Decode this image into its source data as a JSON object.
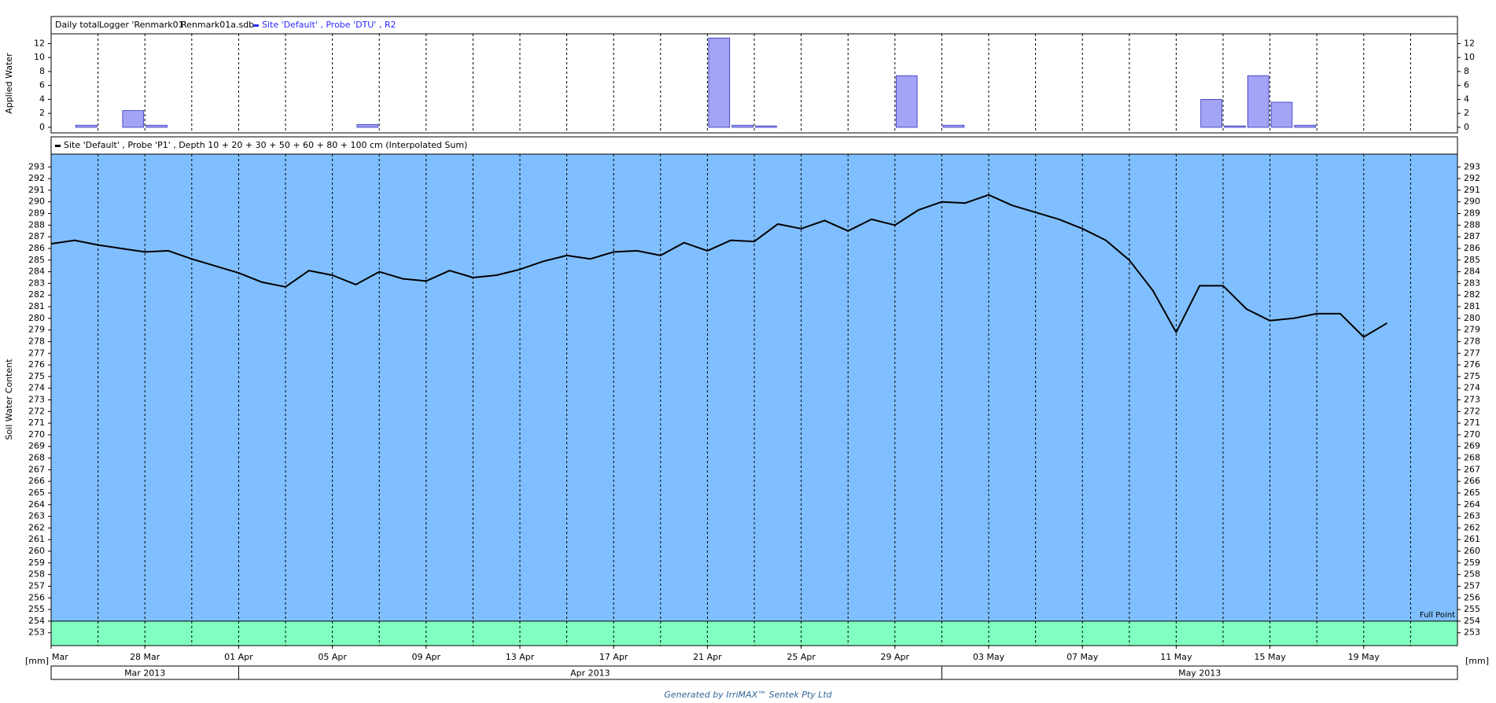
{
  "chart_data": [
    {
      "type": "bar",
      "header": [
        "Daily total",
        "Logger 'Renmark01'",
        "Renmark01a.sdb"
      ],
      "ylabel": "Applied Water",
      "x": [
        "2013-03-24",
        "2013-03-25",
        "2013-03-26",
        "2013-03-27",
        "2013-03-28",
        "2013-03-29",
        "2013-03-30",
        "2013-03-31",
        "2013-04-01",
        "2013-04-02",
        "2013-04-03",
        "2013-04-04",
        "2013-04-05",
        "2013-04-06",
        "2013-04-07",
        "2013-04-08",
        "2013-04-09",
        "2013-04-10",
        "2013-04-11",
        "2013-04-12",
        "2013-04-13",
        "2013-04-14",
        "2013-04-15",
        "2013-04-16",
        "2013-04-17",
        "2013-04-18",
        "2013-04-19",
        "2013-04-20",
        "2013-04-21",
        "2013-04-22",
        "2013-04-23",
        "2013-04-24",
        "2013-04-25",
        "2013-04-26",
        "2013-04-27",
        "2013-04-28",
        "2013-04-29",
        "2013-04-30",
        "2013-05-01",
        "2013-05-02",
        "2013-05-03",
        "2013-05-04",
        "2013-05-05",
        "2013-05-06",
        "2013-05-07",
        "2013-05-08",
        "2013-05-09",
        "2013-05-10",
        "2013-05-11",
        "2013-05-12",
        "2013-05-13",
        "2013-05-14",
        "2013-05-15",
        "2013-05-16",
        "2013-05-17",
        "2013-05-18",
        "2013-05-19"
      ],
      "series": [
        {
          "name": "Site 'Default' , Probe 'DTU' , R2",
          "color": "#a4a4f6",
          "values": [
            0,
            0.3,
            0,
            2.4,
            0.3,
            0,
            0,
            0,
            0,
            0,
            0,
            0,
            0,
            0.4,
            0,
            0,
            0,
            0,
            0,
            0,
            0,
            0,
            0,
            0,
            0,
            0,
            0,
            0,
            12.8,
            0.3,
            0.2,
            0,
            0,
            0,
            0,
            0,
            7.4,
            0,
            0.3,
            0,
            0,
            0,
            0,
            0,
            0,
            0,
            0,
            0,
            0,
            4.0,
            0.2,
            7.4,
            3.6,
            0.3,
            0,
            0,
            0
          ]
        }
      ],
      "xlim": [
        "2013-03-24",
        "2013-05-23"
      ],
      "ylim": [
        -0.8,
        13.4
      ],
      "yticks": [
        0,
        2,
        4,
        6,
        8,
        10,
        12
      ],
      "xminorticks": [
        "2013-03-26",
        "2013-03-28",
        "2013-03-30",
        "2013-04-01",
        "2013-04-03",
        "2013-04-05",
        "2013-04-07",
        "2013-04-09",
        "2013-04-11",
        "2013-04-13",
        "2013-04-15",
        "2013-04-17",
        "2013-04-19",
        "2013-04-21",
        "2013-04-23",
        "2013-04-25",
        "2013-04-27",
        "2013-04-29",
        "2013-05-01",
        "2013-05-03",
        "2013-05-05",
        "2013-05-07",
        "2013-05-09",
        "2013-05-11",
        "2013-05-13",
        "2013-05-15",
        "2013-05-17",
        "2013-05-19",
        "2013-05-21"
      ]
    },
    {
      "type": "line",
      "ylabel": "Soil Water Content",
      "x": [
        "2013-03-24",
        "2013-03-25",
        "2013-03-26",
        "2013-03-27",
        "2013-03-28",
        "2013-03-29",
        "2013-03-30",
        "2013-03-31",
        "2013-04-01",
        "2013-04-02",
        "2013-04-03",
        "2013-04-04",
        "2013-04-05",
        "2013-04-06",
        "2013-04-07",
        "2013-04-08",
        "2013-04-09",
        "2013-04-10",
        "2013-04-11",
        "2013-04-12",
        "2013-04-13",
        "2013-04-14",
        "2013-04-15",
        "2013-04-16",
        "2013-04-17",
        "2013-04-18",
        "2013-04-19",
        "2013-04-20",
        "2013-04-21",
        "2013-04-22",
        "2013-04-23",
        "2013-04-24",
        "2013-04-25",
        "2013-04-26",
        "2013-04-27",
        "2013-04-28",
        "2013-04-29",
        "2013-04-30",
        "2013-05-01",
        "2013-05-02",
        "2013-05-03",
        "2013-05-04",
        "2013-05-05",
        "2013-05-06",
        "2013-05-07",
        "2013-05-08",
        "2013-05-09",
        "2013-05-10",
        "2013-05-11",
        "2013-05-12",
        "2013-05-13",
        "2013-05-14",
        "2013-05-15",
        "2013-05-16",
        "2013-05-17",
        "2013-05-18",
        "2013-05-19",
        "2013-05-20"
      ],
      "series": [
        {
          "name": "Site 'Default' , Probe 'P1' , Depth 10 + 20 + 30 + 50 + 60 + 80 + 100 cm (Interpolated Sum)",
          "color": "#000000",
          "values": [
            286.4,
            286.7,
            286.3,
            286.0,
            285.7,
            285.8,
            285.1,
            284.5,
            283.9,
            283.1,
            282.7,
            284.1,
            283.7,
            282.9,
            284.0,
            283.4,
            283.2,
            284.1,
            283.5,
            283.7,
            284.2,
            284.9,
            285.4,
            285.1,
            285.7,
            285.8,
            285.4,
            286.5,
            285.8,
            286.7,
            286.6,
            288.1,
            287.7,
            288.4,
            287.5,
            288.5,
            288.0,
            289.3,
            290.0,
            289.9,
            290.6,
            289.7,
            289.1,
            288.5,
            287.7,
            286.7,
            285.0,
            282.4,
            278.8,
            282.8,
            282.8,
            280.8,
            279.8,
            280.0,
            280.4,
            280.4,
            278.4,
            279.6
          ]
        }
      ],
      "xlim": [
        "2013-03-24",
        "2013-05-23"
      ],
      "ylim": [
        251.9,
        294.1
      ],
      "yticks": [
        253,
        254,
        255,
        256,
        257,
        258,
        259,
        260,
        261,
        262,
        263,
        264,
        265,
        266,
        267,
        268,
        269,
        270,
        271,
        272,
        273,
        274,
        275,
        276,
        277,
        278,
        279,
        280,
        281,
        282,
        283,
        284,
        285,
        286,
        287,
        288,
        289,
        290,
        291,
        292,
        293
      ],
      "full_point": 254,
      "full_point_label": "Full Point",
      "above_color": "#80bfff",
      "below_color": "#80ffc0",
      "x_unit": "[mm]",
      "xticks": [
        {
          "value": "2013-03-24",
          "label": "Mar"
        },
        {
          "value": "2013-03-28",
          "label": "28 Mar"
        },
        {
          "value": "2013-04-01",
          "label": "01 Apr"
        },
        {
          "value": "2013-04-05",
          "label": "05 Apr"
        },
        {
          "value": "2013-04-09",
          "label": "09 Apr"
        },
        {
          "value": "2013-04-13",
          "label": "13 Apr"
        },
        {
          "value": "2013-04-17",
          "label": "17 Apr"
        },
        {
          "value": "2013-04-21",
          "label": "21 Apr"
        },
        {
          "value": "2013-04-25",
          "label": "25 Apr"
        },
        {
          "value": "2013-04-29",
          "label": "29 Apr"
        },
        {
          "value": "2013-05-03",
          "label": "03 May"
        },
        {
          "value": "2013-05-07",
          "label": "07 May"
        },
        {
          "value": "2013-05-11",
          "label": "11 May"
        },
        {
          "value": "2013-05-15",
          "label": "15 May"
        },
        {
          "value": "2013-05-19",
          "label": "19 May"
        }
      ],
      "xminorticks": [
        "2013-03-26",
        "2013-03-28",
        "2013-03-30",
        "2013-04-01",
        "2013-04-03",
        "2013-04-05",
        "2013-04-07",
        "2013-04-09",
        "2013-04-11",
        "2013-04-13",
        "2013-04-15",
        "2013-04-17",
        "2013-04-19",
        "2013-04-21",
        "2013-04-23",
        "2013-04-25",
        "2013-04-27",
        "2013-04-29",
        "2013-05-01",
        "2013-05-03",
        "2013-05-05",
        "2013-05-07",
        "2013-05-09",
        "2013-05-11",
        "2013-05-13",
        "2013-05-15",
        "2013-05-17",
        "2013-05-19",
        "2013-05-21"
      ],
      "month_bands": [
        {
          "label": "Mar 2013",
          "start": "2013-03-24",
          "end": "2013-04-01"
        },
        {
          "label": "Apr 2013",
          "start": "2013-04-01",
          "end": "2013-05-01"
        },
        {
          "label": "May 2013",
          "start": "2013-05-01",
          "end": "2013-05-23"
        }
      ]
    }
  ],
  "footer": "Generated by IrriMAX™ Sentek Pty Ltd"
}
